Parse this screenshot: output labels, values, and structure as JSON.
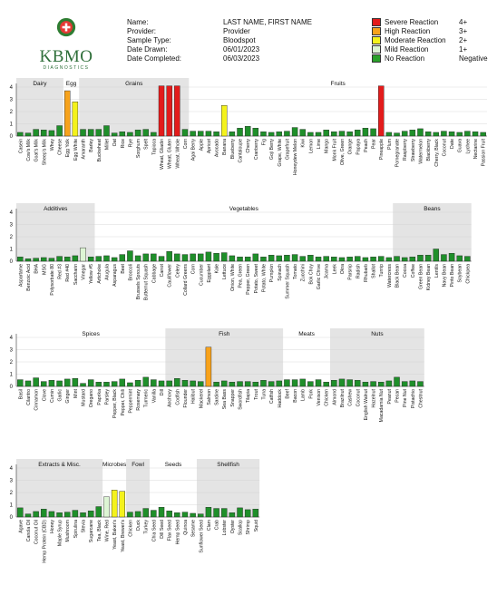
{
  "header": {
    "fields": [
      {
        "label": "Name:",
        "value": "LAST NAME, FIRST NAME"
      },
      {
        "label": "Provider:",
        "value": "Provider"
      },
      {
        "label": "Sample Type:",
        "value": "Bloodspot"
      },
      {
        "label": "Date Drawn:",
        "value": "06/01/2023"
      },
      {
        "label": "Date Completed:",
        "value": "06/03/2023"
      }
    ]
  },
  "logo": {
    "text": "KBMO",
    "subtext": "DIAGNOSTICS",
    "colors": {
      "ring": "#2e7d32",
      "cross": "#d32f2f"
    }
  },
  "legend": [
    {
      "label": "Severe Reaction",
      "value": "4+",
      "color": "#e31b1b"
    },
    {
      "label": "High Reaction",
      "value": "3+",
      "color": "#f7a21b"
    },
    {
      "label": "Moderate Reaction",
      "value": "2+",
      "color": "#f4f21c"
    },
    {
      "label": "Mild Reaction",
      "value": "1+",
      "color": "#ddf5d4"
    },
    {
      "label": "No Reaction",
      "value": "Negative",
      "color": "#2aa12a"
    }
  ],
  "chart_data": [
    {
      "type": "bar",
      "ylim": [
        0,
        4
      ],
      "yticks": [
        0,
        1,
        2,
        3,
        4
      ],
      "groups": [
        {
          "name": "Dairy",
          "start": 0,
          "end": 5,
          "shaded": true
        },
        {
          "name": "Egg",
          "start": 6,
          "end": 7,
          "shaded": false
        },
        {
          "name": "Grains",
          "start": 8,
          "end": 21,
          "shaded": true
        },
        {
          "name": "Fruits",
          "start": 22,
          "end": 59,
          "shaded": false
        }
      ],
      "categories": [
        "Casein",
        "Cow's Milk",
        "Goat's Milk",
        "Sheep's Milk",
        "Whey",
        "Cheese",
        "Egg Yolk",
        "Egg White",
        "Amaranth",
        "Barley",
        "Buckwheat",
        "Millet",
        "Oat",
        "Rice",
        "Rye",
        "Sorghum",
        "Spelt",
        "Tapioca",
        "Wheat, Gliadin",
        "Wheat, Gluten",
        "Wheat, Whole",
        "Corn",
        "Agai Berry",
        "Apple",
        "Apricot",
        "Avocado",
        "Banana",
        "Blueberry",
        "Cantaloupe",
        "Cherry",
        "Cranberry",
        "Fig",
        "Goji Berry",
        "Grape, White",
        "Grapefruit",
        "Honeydew Melon",
        "Kiwi",
        "Lemon",
        "Lime",
        "Mango",
        "Monk Fruit",
        "Olive, Green",
        "Orange",
        "Papaya",
        "Peach",
        "Pear",
        "Pineapple",
        "Plum",
        "Pomegranate",
        "Raspberry",
        "Strawberry",
        "Watermelon",
        "Blackberry",
        "Cherry, Black",
        "Coconut",
        "Date",
        "Guava",
        "Lychee",
        "Nectarine",
        "Passion Fruit"
      ],
      "values": [
        0.3,
        0.25,
        0.55,
        0.5,
        0.45,
        0.85,
        3.7,
        2.8,
        0.55,
        0.55,
        0.55,
        0.85,
        0.25,
        0.35,
        0.3,
        0.5,
        0.55,
        0.3,
        4.1,
        4.1,
        4.1,
        0.55,
        0.4,
        0.4,
        0.4,
        0.35,
        2.5,
        0.35,
        0.65,
        0.8,
        0.65,
        0.35,
        0.3,
        0.35,
        0.4,
        0.7,
        0.55,
        0.3,
        0.3,
        0.5,
        0.35,
        0.4,
        0.35,
        0.5,
        0.65,
        0.6,
        4.1,
        0.3,
        0.25,
        0.4,
        0.5,
        0.6,
        0.35,
        0.3,
        0.4,
        0.35,
        0.3,
        0.4,
        0.35,
        0.3
      ],
      "colors": [
        "g",
        "g",
        "g",
        "g",
        "g",
        "g",
        "o",
        "y",
        "g",
        "g",
        "g",
        "g",
        "g",
        "g",
        "g",
        "g",
        "g",
        "g",
        "r",
        "r",
        "r",
        "g",
        "g",
        "g",
        "g",
        "g",
        "y",
        "g",
        "g",
        "g",
        "g",
        "g",
        "g",
        "g",
        "g",
        "g",
        "g",
        "g",
        "g",
        "g",
        "g",
        "g",
        "g",
        "g",
        "g",
        "g",
        "r",
        "g",
        "g",
        "g",
        "g",
        "g",
        "g",
        "g",
        "g",
        "g",
        "g",
        "g",
        "g",
        "g"
      ]
    },
    {
      "type": "bar",
      "ylim": [
        0,
        4
      ],
      "yticks": [
        0,
        1,
        2,
        3,
        4
      ],
      "groups": [
        {
          "name": "Additives",
          "start": 0,
          "end": 9,
          "shaded": true
        },
        {
          "name": "Vegetables",
          "start": 10,
          "end": 47,
          "shaded": false
        },
        {
          "name": "Beans",
          "start": 48,
          "end": 57,
          "shaded": true
        }
      ],
      "categories": [
        "Aspartame",
        "Benzoic Acid",
        "BHA",
        "MSG",
        "Polysorbate 80",
        "Red #3",
        "Red #40",
        "Saccharin",
        "Vinegar",
        "Yellow #5",
        "Artichoke",
        "Arugula",
        "Asparagus",
        "Beet",
        "Broccoli",
        "Brussels Sprouts",
        "Butternut Squash",
        "Cabbage",
        "Carrot",
        "Cauliflower",
        "Celery",
        "Collard Greens",
        "Corn",
        "Cucumber",
        "Eggplant",
        "Kale",
        "Lettuce",
        "Onion, White",
        "Pea, Green",
        "Pepper, Green",
        "Potato, Sweet",
        "Potato, White",
        "Pumpkin",
        "Spinach",
        "Summer Squash",
        "Tomato",
        "Zucchini",
        "Bok Choy",
        "Garlic Chive",
        "Jicama",
        "Leek",
        "Okra",
        "Parsnip",
        "Radish",
        "Rhubarb",
        "Shallot",
        "Turnip",
        "Watercress",
        "Black Bean",
        "Cocoa",
        "Coffee",
        "Green Bean",
        "Kidney Bean",
        "Lentils",
        "Navy Bean",
        "Pinto Bean",
        "Soybean",
        "Chickpea"
      ],
      "values": [
        0.35,
        0.2,
        0.25,
        0.3,
        0.25,
        0.4,
        0.35,
        0.45,
        1.1,
        0.35,
        0.4,
        0.45,
        0.3,
        0.55,
        0.85,
        0.45,
        0.6,
        0.6,
        0.4,
        0.8,
        0.6,
        0.55,
        0.6,
        0.6,
        0.75,
        0.65,
        0.7,
        0.45,
        0.35,
        0.35,
        0.6,
        0.35,
        0.5,
        0.45,
        0.5,
        0.55,
        0.4,
        0.5,
        0.35,
        0.4,
        0.35,
        0.3,
        0.35,
        0.4,
        0.3,
        0.35,
        0.4,
        0.3,
        0.4,
        0.3,
        0.35,
        0.5,
        0.5,
        1.0,
        0.55,
        0.65,
        0.45,
        0.4
      ],
      "colors": [
        "g",
        "g",
        "g",
        "g",
        "g",
        "g",
        "g",
        "g",
        "m",
        "g",
        "g",
        "g",
        "g",
        "g",
        "g",
        "g",
        "g",
        "g",
        "g",
        "g",
        "g",
        "g",
        "g",
        "g",
        "g",
        "g",
        "g",
        "g",
        "g",
        "g",
        "g",
        "g",
        "g",
        "g",
        "g",
        "g",
        "g",
        "g",
        "g",
        "g",
        "g",
        "g",
        "g",
        "g",
        "g",
        "g",
        "g",
        "g",
        "g",
        "g",
        "g",
        "g",
        "g",
        "g",
        "g",
        "g",
        "g",
        "g"
      ]
    },
    {
      "type": "bar",
      "ylim": [
        0,
        4
      ],
      "yticks": [
        0,
        1,
        2,
        3,
        4
      ],
      "groups": [
        {
          "name": "Spices",
          "start": 0,
          "end": 18,
          "shaded": false
        },
        {
          "name": "Fish",
          "start": 19,
          "end": 33,
          "shaded": true
        },
        {
          "name": "Meats",
          "start": 34,
          "end": 39,
          "shaded": false
        },
        {
          "name": "Nuts",
          "start": 40,
          "end": 51,
          "shaded": true
        }
      ],
      "categories": [
        "Basil",
        "Cilantro",
        "Cinnamon",
        "Clove",
        "Cumin",
        "Garlic",
        "Ginger",
        "Mint",
        "Mustard",
        "Oregano",
        "Paprika",
        "Parsley",
        "Pepper, Black",
        "Pepper, Chili",
        "Peppermint",
        "Rosemary",
        "Turmeric",
        "Vanilla",
        "Dill",
        "Anchovy",
        "Codfish",
        "Flounder",
        "Halibut",
        "Mackerel",
        "Salmon",
        "Sardine",
        "Sea Bass",
        "Snapper",
        "Swordfish",
        "Tilapia",
        "Trout",
        "Tuna",
        "Catfish",
        "Haddock",
        "Beef",
        "Bacon",
        "Lamb",
        "Pork",
        "Venison",
        "Chicken",
        "Almond",
        "Brazilnut",
        "Cashew",
        "Coconut",
        "English Walnut",
        "Hazelnut",
        "Macadamia Nut",
        "Peanut",
        "Pecan",
        "Pine Nut",
        "Pistachio",
        "Chestnut"
      ],
      "values": [
        0.55,
        0.45,
        0.7,
        0.4,
        0.5,
        0.45,
        0.6,
        0.65,
        0.25,
        0.55,
        0.35,
        0.35,
        0.4,
        0.6,
        0.3,
        0.5,
        0.75,
        0.55,
        0.45,
        0.45,
        0.65,
        0.5,
        0.45,
        0.4,
        3.2,
        0.35,
        0.45,
        0.35,
        0.4,
        0.4,
        0.35,
        0.5,
        0.4,
        0.45,
        0.55,
        0.55,
        0.6,
        0.4,
        0.55,
        0.35,
        0.5,
        0.6,
        0.55,
        0.5,
        0.35,
        0.4,
        0.35,
        0.45,
        0.75,
        0.4,
        0.45,
        0.4
      ],
      "colors": [
        "g",
        "g",
        "g",
        "g",
        "g",
        "g",
        "g",
        "g",
        "g",
        "g",
        "g",
        "g",
        "g",
        "g",
        "g",
        "g",
        "g",
        "g",
        "g",
        "g",
        "g",
        "g",
        "g",
        "g",
        "o",
        "g",
        "g",
        "g",
        "g",
        "g",
        "g",
        "g",
        "g",
        "g",
        "g",
        "g",
        "g",
        "g",
        "g",
        "g",
        "g",
        "g",
        "g",
        "g",
        "g",
        "g",
        "g",
        "g",
        "g",
        "g",
        "g",
        "g"
      ]
    },
    {
      "type": "bar",
      "ylim": [
        0,
        4
      ],
      "yticks": [
        0,
        1,
        2,
        3,
        4
      ],
      "groups": [
        {
          "name": "Extracts & Misc.",
          "start": 0,
          "end": 10,
          "shaded": true
        },
        {
          "name": "Microbes",
          "start": 11,
          "end": 13,
          "shaded": false
        },
        {
          "name": "Fowl",
          "start": 14,
          "end": 16,
          "shaded": true
        },
        {
          "name": "Seeds",
          "start": 17,
          "end": 22,
          "shaded": false
        },
        {
          "name": "Shellfish",
          "start": 23,
          "end": 30,
          "shaded": true
        }
      ],
      "categories": [
        "Agave",
        "Canola Oil",
        "Coconut Oil",
        "Hemp Protein (CBD)",
        "Honey",
        "Maple Syrup",
        "Mushroom",
        "Spirulina",
        "Stevia",
        "Sugarcane",
        "Tea, Black",
        "Wine, Red",
        "Yeast, Baker's",
        "Yeast, Brewer's",
        "Chicken",
        "Duck",
        "Turkey",
        "Chia Seed",
        "Dill Seed",
        "Flax Seed",
        "Hemp Seed",
        "Quinoa",
        "Sesame",
        "Sunflower Seed",
        "Clam",
        "Crab",
        "Lobster",
        "Oyster",
        "Scallop",
        "Shrimp",
        "Squid"
      ],
      "values": [
        0.75,
        0.25,
        0.45,
        0.65,
        0.45,
        0.35,
        0.4,
        0.55,
        0.35,
        0.5,
        0.85,
        1.65,
        2.2,
        2.1,
        0.4,
        0.45,
        0.7,
        0.55,
        0.8,
        0.5,
        0.35,
        0.4,
        0.3,
        0.25,
        0.8,
        0.7,
        0.7,
        0.35,
        0.75,
        0.6,
        0.65
      ],
      "colors": [
        "g",
        "g",
        "g",
        "g",
        "g",
        "g",
        "g",
        "g",
        "g",
        "g",
        "g",
        "m",
        "y",
        "y",
        "g",
        "g",
        "g",
        "g",
        "g",
        "g",
        "g",
        "g",
        "g",
        "g",
        "g",
        "g",
        "g",
        "g",
        "g",
        "g",
        "g"
      ]
    }
  ]
}
